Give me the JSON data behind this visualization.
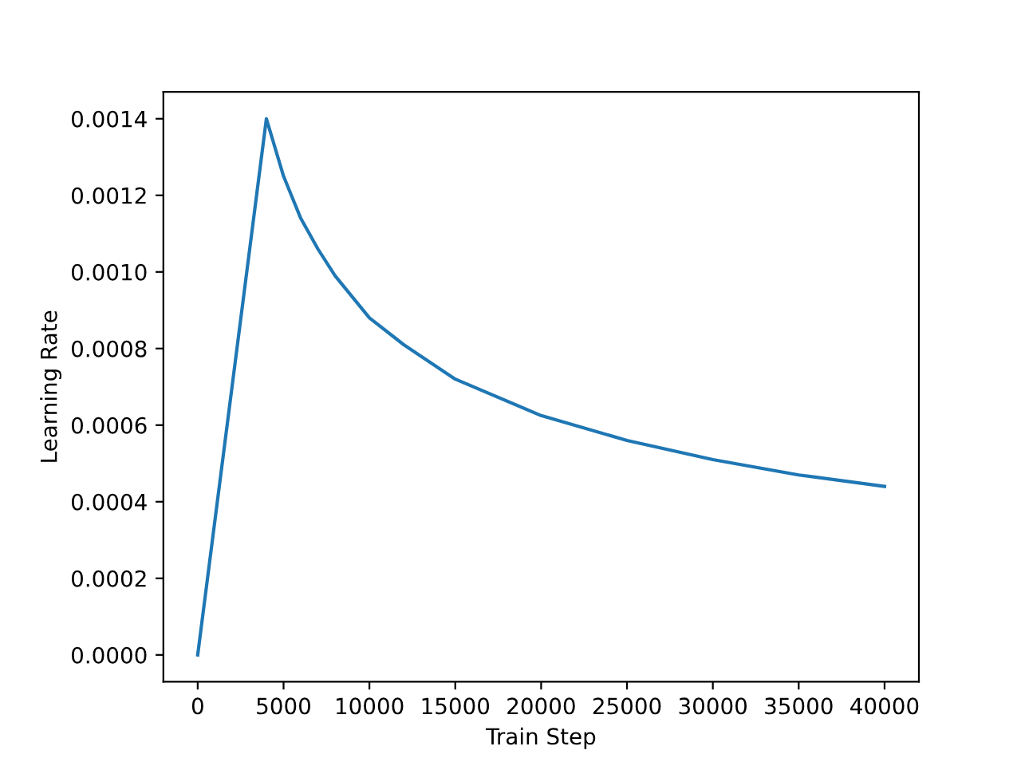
{
  "chart_data": {
    "type": "line",
    "xlabel": "Train Step",
    "ylabel": "Learning Rate",
    "x": [
      0,
      4000,
      5000,
      6000,
      7000,
      8000,
      10000,
      12000,
      15000,
      20000,
      25000,
      30000,
      35000,
      40000
    ],
    "series": [
      {
        "color": "#1f77b4",
        "values": [
          0.0,
          0.0014,
          0.00125,
          0.00114,
          0.00106,
          0.00099,
          0.00088,
          0.00081,
          0.00072,
          0.000625,
          0.00056,
          0.00051,
          0.00047,
          0.00044
        ]
      }
    ],
    "xlim": [
      -2000,
      42000
    ],
    "ylim": [
      -7e-05,
      0.00147
    ],
    "xticks": [
      0,
      5000,
      10000,
      15000,
      20000,
      25000,
      30000,
      35000,
      40000
    ],
    "yticks": [
      {
        "value": 0.0,
        "label": "0.0000"
      },
      {
        "value": 0.0002,
        "label": "0.0002"
      },
      {
        "value": 0.0004,
        "label": "0.0004"
      },
      {
        "value": 0.0006,
        "label": "0.0006"
      },
      {
        "value": 0.0008,
        "label": "0.0008"
      },
      {
        "value": 0.001,
        "label": "0.0010"
      },
      {
        "value": 0.0012,
        "label": "0.0012"
      },
      {
        "value": 0.0014,
        "label": "0.0014"
      }
    ],
    "grid": false,
    "legend": false,
    "marker": "none",
    "line_style": "solid"
  }
}
